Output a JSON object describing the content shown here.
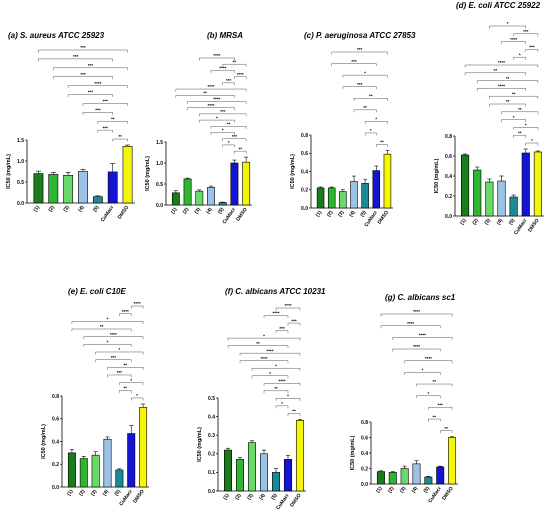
{
  "chart_data": [
    {
      "type": "bar",
      "title": "(a) S. aureus ATCC 25923",
      "ylabel": "IC50 (mg/mL)",
      "ylim": [
        0,
        1.5
      ],
      "yticks": [
        "0.0",
        "0.5",
        "1.0",
        "1.5"
      ],
      "categories": [
        "(1)",
        "(2)",
        "(3)",
        "(4)",
        "(5)",
        "CuMacr",
        "DMSO"
      ],
      "values": [
        0.7,
        0.68,
        0.66,
        0.75,
        0.15,
        0.74,
        1.35
      ],
      "errors": [
        0.06,
        0.05,
        0.07,
        0.05,
        0.02,
        0.2,
        0.03
      ],
      "significance": [
        "**",
        "***",
        "**",
        "***",
        "***",
        "***",
        "****",
        "***",
        "***",
        "***",
        "***"
      ]
    },
    {
      "type": "bar",
      "title": "(b) MRSA",
      "ylabel": "IC50 (mg/mL)",
      "ylim": [
        0,
        1.5
      ],
      "yticks": [
        "0.0",
        "0.5",
        "1.0",
        "1.5"
      ],
      "categories": [
        "(1)",
        "(2)",
        "(3)",
        "(4)",
        "(5)",
        "CuMacr",
        "DMSO"
      ],
      "values": [
        0.29,
        0.62,
        0.33,
        0.42,
        0.06,
        1.0,
        1.02
      ],
      "errors": [
        0.05,
        0.02,
        0.03,
        0.03,
        0.01,
        0.07,
        0.12
      ],
      "significance": [
        "**",
        "*",
        "***",
        "*",
        "**",
        "*",
        "***",
        "****",
        "****",
        "**",
        "****",
        "***",
        "****",
        "****",
        "**",
        "****"
      ]
    },
    {
      "type": "bar",
      "title": "(c) P. aeruginosa ATCC 27853",
      "ylabel": "IC50 (mg/mL)",
      "ylim": [
        0,
        0.8
      ],
      "yticks": [
        "0.0",
        "0.2",
        "0.4",
        "0.6",
        "0.8"
      ],
      "categories": [
        "(1)",
        "(2)",
        "(3)",
        "(4)",
        "(5)",
        "CuMacr",
        "DMSO"
      ],
      "values": [
        0.22,
        0.22,
        0.18,
        0.29,
        0.27,
        0.41,
        0.59
      ],
      "errors": [
        0.01,
        0.01,
        0.02,
        0.06,
        0.04,
        0.05,
        0.04
      ],
      "significance": [
        "**",
        "*",
        "*",
        "**",
        "**",
        "***",
        "*",
        "***",
        "***"
      ]
    },
    {
      "type": "bar",
      "title": "(d) E. coli ATCC 25922",
      "ylabel": "IC50 (mg/mL)",
      "ylim": [
        0,
        0.8
      ],
      "yticks": [
        "0.0",
        "0.2",
        "0.4",
        "0.6",
        "0.8"
      ],
      "categories": [
        "(1)",
        "(2)",
        "(3)",
        "(4)",
        "(5)",
        "CuMacr",
        "DMSO"
      ],
      "values": [
        0.61,
        0.46,
        0.34,
        0.35,
        0.19,
        0.63,
        0.64
      ],
      "errors": [
        0.01,
        0.03,
        0.03,
        0.05,
        0.02,
        0.04,
        0.01
      ],
      "significance": [
        "*",
        "**",
        "*",
        "*",
        "**",
        "**",
        "**",
        "****",
        "**",
        "**",
        "****",
        "*",
        "***",
        "****",
        "***",
        "*"
      ]
    },
    {
      "type": "bar",
      "title": "(e) E. coli C10E",
      "ylabel": "IC50 (mg/mL)",
      "ylim": [
        0,
        0.8
      ],
      "yticks": [
        "0.0",
        "0.2",
        "0.4",
        "0.6",
        "0.8"
      ],
      "categories": [
        "(1)",
        "(2)",
        "(3)",
        "(4)",
        "(5)",
        "CuMacr",
        "DMSO"
      ],
      "values": [
        0.3,
        0.25,
        0.28,
        0.42,
        0.15,
        0.47,
        0.7
      ],
      "errors": [
        0.03,
        0.02,
        0.03,
        0.02,
        0.01,
        0.07,
        0.03
      ],
      "significance": [
        "*",
        "**",
        "*",
        "***",
        "**",
        "***",
        "*",
        "*",
        "****",
        "**",
        "*",
        "****",
        "****"
      ]
    },
    {
      "type": "bar",
      "title": "(f) C. albicans ATCC 10231",
      "ylabel": "IC50 (mg/mL)",
      "ylim": [
        0,
        0.5
      ],
      "yticks": [
        "0.0",
        "0.1",
        "0.2",
        "0.3",
        "0.4",
        "0.5"
      ],
      "categories": [
        "(1)",
        "(2)",
        "(3)",
        "(4)",
        "(5)",
        "CuMacr",
        "DMSO"
      ],
      "values": [
        0.22,
        0.17,
        0.26,
        0.2,
        0.1,
        0.17,
        0.38
      ],
      "errors": [
        0.01,
        0.01,
        0.01,
        0.02,
        0.02,
        0.02,
        0.005
      ],
      "significance": [
        "**",
        "*",
        "*",
        "**",
        "****",
        "*",
        "*",
        "****",
        "****",
        "**",
        "*",
        "***",
        "***",
        "****",
        "****"
      ]
    },
    {
      "type": "bar",
      "title": "(g) C. albicans sc1",
      "ylabel": "IC50 (mg/mL)",
      "ylim": [
        0,
        0.8
      ],
      "yticks": [
        "0.0",
        "0.2",
        "0.4",
        "0.6",
        "0.8"
      ],
      "categories": [
        "(1)",
        "(2)",
        "(3)",
        "(4)",
        "(5)",
        "CuMacr",
        "DMSO"
      ],
      "values": [
        0.16,
        0.15,
        0.2,
        0.26,
        0.09,
        0.22,
        0.6
      ],
      "errors": [
        0.01,
        0.01,
        0.03,
        0.04,
        0.01,
        0.01,
        0.01
      ],
      "significance": [
        "**",
        "**",
        "***",
        "*",
        "**",
        "*",
        "****",
        "****",
        "****",
        "****",
        "****"
      ]
    }
  ],
  "bar_colors": [
    "#1a7d1a",
    "#2fb52f",
    "#6ad96a",
    "#9cc3e6",
    "#1a8a96",
    "#1414d4",
    "#f5f50a"
  ]
}
